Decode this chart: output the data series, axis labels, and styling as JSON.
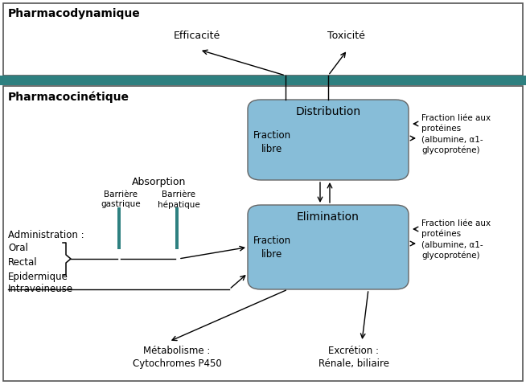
{
  "title_pharmaco_dyn": "Pharmacodynamique",
  "title_pharmaco_cin": "Pharmacocinétique",
  "box_distribution_title": "Distribution",
  "box_distribution_sub": "Fraction\nlibre",
  "box_elimination_title": "Elimination",
  "box_elimination_sub": "Fraction\nlibre",
  "fraction_liee_text": "Fraction liée aux\nprotéines\n(albumine, α1-\nglycoproténe)",
  "efficacite": "Efficacité",
  "toxicite": "Toxicité",
  "absorption": "Absorption",
  "barriere_gastrique": "Barrière\ngastrique",
  "barriere_hepatique": "Barrière\nhépatique",
  "administration": "Administration :",
  "admin_routes": "Oral\nRectal\nEpidermique",
  "intraveineuse": "Intraveineuse",
  "metabolisme": "Métabolisme :\nCytochromes P450",
  "excretion": "Excrétion :\nRénale, biliaire",
  "box_color": "#87bdd8",
  "teal_bar_color": "#2e8080",
  "bg_color": "#ffffff",
  "border_color": "#444444",
  "fig_w": 6.54,
  "fig_h": 4.79,
  "dpi": 100
}
